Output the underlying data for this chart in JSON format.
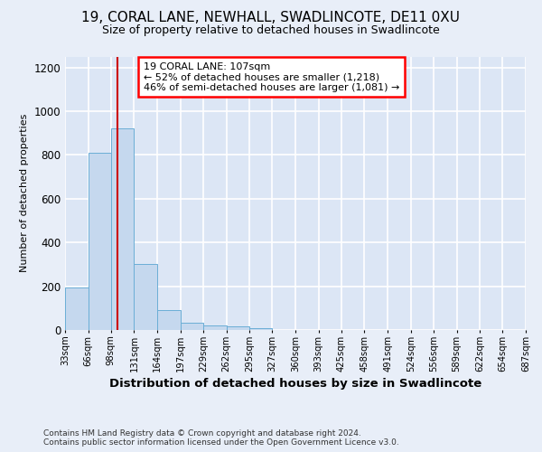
{
  "title": "19, CORAL LANE, NEWHALL, SWADLINCOTE, DE11 0XU",
  "subtitle": "Size of property relative to detached houses in Swadlincote",
  "xlabel": "Distribution of detached houses by size in Swadlincote",
  "ylabel": "Number of detached properties",
  "bar_color": "#c5d8ee",
  "bar_edge_color": "#6baed6",
  "property_line_color": "#cc0000",
  "property_sqm": 107,
  "annotation_title": "19 CORAL LANE: 107sqm",
  "annotation_line1": "← 52% of detached houses are smaller (1,218)",
  "annotation_line2": "46% of semi-detached houses are larger (1,081) →",
  "footer1": "Contains HM Land Registry data © Crown copyright and database right 2024.",
  "footer2": "Contains public sector information licensed under the Open Government Licence v3.0.",
  "bin_edges": [
    33,
    66,
    98,
    131,
    164,
    197,
    229,
    262,
    295,
    327,
    360,
    393,
    425,
    458,
    491,
    524,
    556,
    589,
    622,
    654,
    687
  ],
  "bar_heights": [
    195,
    810,
    920,
    300,
    90,
    35,
    20,
    15,
    10,
    0,
    0,
    0,
    0,
    0,
    0,
    0,
    0,
    0,
    0,
    0
  ],
  "ylim": [
    0,
    1250
  ],
  "yticks": [
    0,
    200,
    400,
    600,
    800,
    1000,
    1200
  ],
  "background_color": "#e8eef8",
  "plot_bg_color": "#dce6f5"
}
